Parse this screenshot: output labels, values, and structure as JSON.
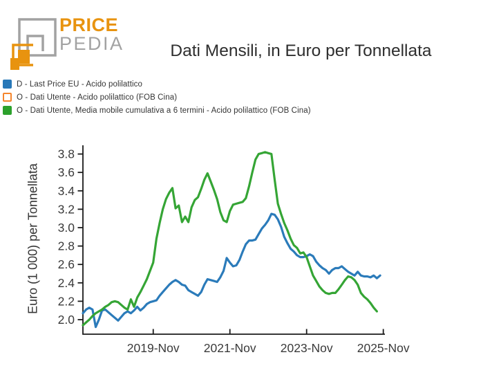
{
  "logo": {
    "brand_top": "PRICE",
    "brand_bottom": "PEDIA",
    "colors": {
      "orange": "#e8930f",
      "gray": "#a2a2a2"
    }
  },
  "header": {
    "title": "Dati Mensili, in Euro per Tonnellata"
  },
  "legend": {
    "items": [
      {
        "label": "D - Last Price EU - Acido polilattico",
        "swatch_color": "#2878b8",
        "swatch_style": "filled"
      },
      {
        "label": "O - Dati Utente - Acido polilattico (FOB Cina)",
        "swatch_color": "#f5852c",
        "swatch_style": "outline"
      },
      {
        "label": "O - Dati Utente, Media mobile cumulativa a 6 termini - Acido polilattico (FOB Cina)",
        "swatch_color": "#2ca12c",
        "swatch_style": "filled"
      }
    ]
  },
  "chart_data": {
    "type": "line",
    "title": "Dati Mensili, in Euro per Tonnellata",
    "xlabel": "",
    "ylabel": "Euro (1 000) per Tonnellata",
    "x_start_month": "2018-01",
    "x_frequency": "monthly",
    "x_tick_labels": [
      "2019-Nov",
      "2021-Nov",
      "2023-Nov",
      "2025-Nov"
    ],
    "x_tick_month_offsets": [
      22,
      46,
      70,
      94
    ],
    "x_axis_month_span": 94.5,
    "y_ticks": [
      2.0,
      2.2,
      2.4,
      2.6,
      2.8,
      3.0,
      3.2,
      3.4,
      3.6,
      3.8
    ],
    "y_axis_value_range": [
      1.84,
      3.93
    ],
    "grid": false,
    "legend_position": "top-left-above-plot",
    "series": [
      {
        "name": "D - Last Price EU - Acido polilattico",
        "color": "#2b7bba",
        "first_month": "2018-01",
        "values": [
          2.07,
          2.11,
          2.13,
          2.11,
          1.92,
          2.0,
          2.1,
          2.11,
          2.08,
          2.05,
          2.02,
          1.99,
          2.03,
          2.07,
          2.09,
          2.07,
          2.1,
          2.14,
          2.1,
          2.13,
          2.17,
          2.19,
          2.2,
          2.21,
          2.26,
          2.3,
          2.34,
          2.38,
          2.41,
          2.43,
          2.41,
          2.38,
          2.37,
          2.32,
          2.3,
          2.28,
          2.26,
          2.3,
          2.38,
          2.44,
          2.43,
          2.42,
          2.41,
          2.46,
          2.53,
          2.67,
          2.62,
          2.58,
          2.59,
          2.65,
          2.74,
          2.82,
          2.86,
          2.86,
          2.87,
          2.93,
          2.99,
          3.03,
          3.08,
          3.15,
          3.14,
          3.09,
          3.01,
          2.9,
          2.83,
          2.77,
          2.74,
          2.7,
          2.68,
          2.68,
          2.69,
          2.71,
          2.69,
          2.63,
          2.59,
          2.56,
          2.54,
          2.5,
          2.54,
          2.56,
          2.56,
          2.58,
          2.55,
          2.52,
          2.5,
          2.48,
          2.52,
          2.48,
          2.47,
          2.47,
          2.46,
          2.48,
          2.45,
          2.48
        ]
      },
      {
        "name": "O - Dati Utente - Acido polilattico (FOB Cina)",
        "color": "#f5852c",
        "first_month": "2018-01",
        "values": []
      },
      {
        "name": "O - Dati Utente, Media mobile cumulativa a 6 termini - Acido polilattico (FOB Cina)",
        "color": "#35a535",
        "first_month": "2018-01",
        "values": [
          1.94,
          1.97,
          2.0,
          2.04,
          2.07,
          2.09,
          2.11,
          2.14,
          2.16,
          2.19,
          2.2,
          2.19,
          2.16,
          2.13,
          2.11,
          2.22,
          2.14,
          2.24,
          2.3,
          2.37,
          2.44,
          2.53,
          2.62,
          2.88,
          3.05,
          3.2,
          3.31,
          3.38,
          3.43,
          3.21,
          3.24,
          3.06,
          3.12,
          3.06,
          3.22,
          3.3,
          3.33,
          3.42,
          3.52,
          3.59,
          3.5,
          3.41,
          3.31,
          3.17,
          3.08,
          3.06,
          3.18,
          3.25,
          3.26,
          3.27,
          3.28,
          3.32,
          3.45,
          3.6,
          3.74,
          3.8,
          3.81,
          3.82,
          3.81,
          3.8,
          3.52,
          3.26,
          3.15,
          3.05,
          2.97,
          2.88,
          2.81,
          2.78,
          2.72,
          2.73,
          2.68,
          2.58,
          2.48,
          2.42,
          2.36,
          2.32,
          2.29,
          2.28,
          2.29,
          2.29,
          2.33,
          2.38,
          2.43,
          2.47,
          2.46,
          2.43,
          2.38,
          2.29,
          2.25,
          2.22,
          2.18,
          2.13,
          2.09
        ]
      }
    ]
  }
}
